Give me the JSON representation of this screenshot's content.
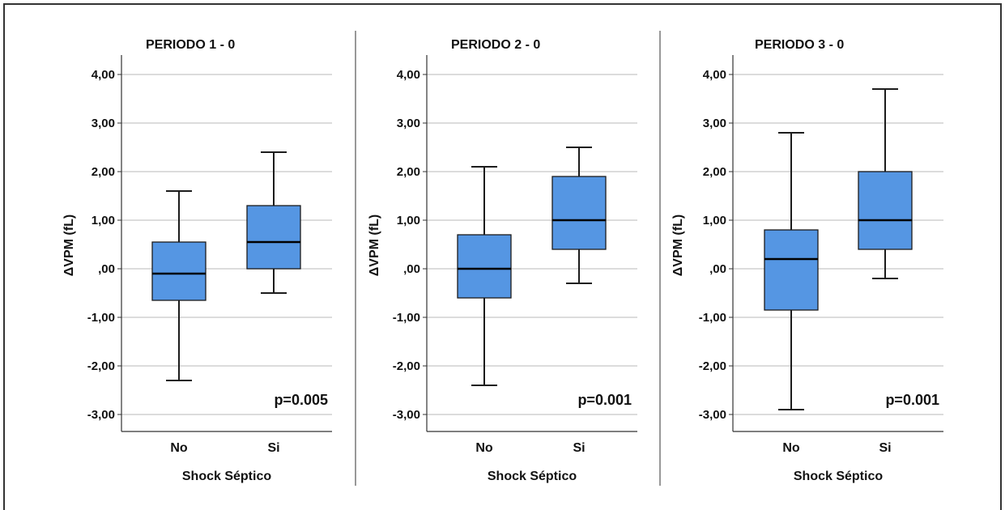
{
  "colors": {
    "box_fill": "#5596e3",
    "box_stroke": "#1c1c1c",
    "grid": "#c8c8c8",
    "axis": "#333333",
    "frame": "#333333"
  },
  "chart_data": [
    {
      "type": "boxplot",
      "title": "PERIODO 1 - 0",
      "xlabel": "Shock Séptico",
      "ylabel": "ΔVPM (fL)",
      "ylim": [
        -3.35,
        4.4
      ],
      "y_ticks": [
        4,
        3,
        2,
        1,
        0,
        -1,
        -2,
        -3
      ],
      "y_tick_labels": [
        "4,00",
        "3,00",
        "2,00",
        "1,00",
        ",00",
        "-1,00",
        "-2,00",
        "-3,00"
      ],
      "grid": true,
      "annotation": "p=0.005",
      "categories": [
        "No",
        "Si"
      ],
      "boxes": [
        {
          "category": "No",
          "min": -2.3,
          "q1": -0.65,
          "median": -0.1,
          "q3": 0.55,
          "max": 1.6
        },
        {
          "category": "Si",
          "min": -0.5,
          "q1": 0.0,
          "median": 0.55,
          "q3": 1.3,
          "max": 2.4
        }
      ]
    },
    {
      "type": "boxplot",
      "title": "PERIODO 2 - 0",
      "xlabel": "Shock Séptico",
      "ylabel": "ΔVPM (fL)",
      "ylim": [
        -3.35,
        4.4
      ],
      "y_ticks": [
        4,
        3,
        2,
        1,
        0,
        -1,
        -2,
        -3
      ],
      "y_tick_labels": [
        "4,00",
        "3,00",
        "2,00",
        "1,00",
        ",00",
        "-1,00",
        "-2,00",
        "-3,00"
      ],
      "grid": true,
      "annotation": "p=0.001",
      "categories": [
        "No",
        "Si"
      ],
      "boxes": [
        {
          "category": "No",
          "min": -2.4,
          "q1": -0.6,
          "median": 0.0,
          "q3": 0.7,
          "max": 2.1
        },
        {
          "category": "Si",
          "min": -0.3,
          "q1": 0.4,
          "median": 1.0,
          "q3": 1.9,
          "max": 2.5
        }
      ]
    },
    {
      "type": "boxplot",
      "title": "PERIODO 3 - 0",
      "xlabel": "Shock Séptico",
      "ylabel": "ΔVPM (fL)",
      "ylim": [
        -3.35,
        4.4
      ],
      "y_ticks": [
        4,
        3,
        2,
        1,
        0,
        -1,
        -2,
        -3
      ],
      "y_tick_labels": [
        "4,00",
        "3,00",
        "2,00",
        "1,00",
        ",00",
        "-1,00",
        "-2,00",
        "-3,00"
      ],
      "grid": true,
      "annotation": "p=0.001",
      "categories": [
        "No",
        "Si"
      ],
      "boxes": [
        {
          "category": "No",
          "min": -2.9,
          "q1": -0.85,
          "median": 0.2,
          "q3": 0.8,
          "max": 2.8
        },
        {
          "category": "Si",
          "min": -0.2,
          "q1": 0.4,
          "median": 1.0,
          "q3": 2.0,
          "max": 3.7
        }
      ]
    }
  ]
}
